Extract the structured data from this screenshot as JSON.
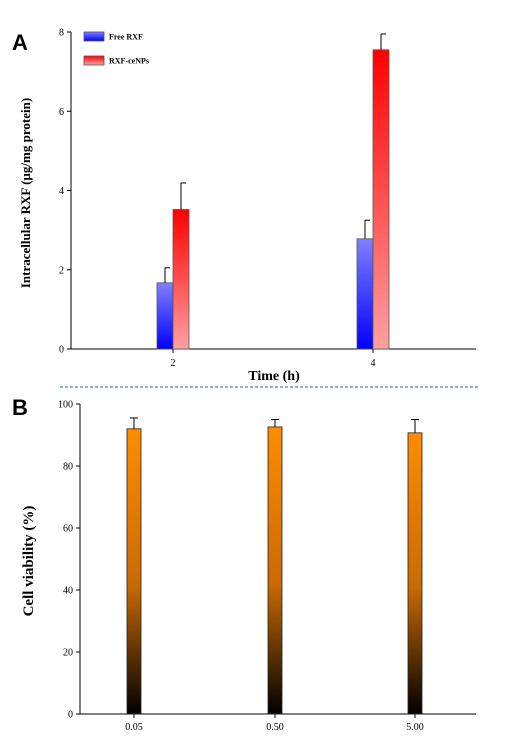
{
  "chart_data": [
    {
      "panel": "A",
      "type": "bar",
      "xlabel": "Time (h)",
      "ylabel": "Intracellular RXF (µg/mg protein)",
      "categories": [
        "2",
        "4"
      ],
      "ylim": [
        0,
        8
      ],
      "yticks": [
        "0",
        "2",
        "4",
        "6",
        "8"
      ],
      "legend_position": "top-left",
      "series": [
        {
          "name": "Free RXF",
          "values": [
            1.67,
            2.78
          ],
          "errors": [
            0.38,
            0.47
          ],
          "color_top": "#8080ff",
          "color_bottom": "#0000ff"
        },
        {
          "name": "RXF-ceNPs",
          "values": [
            3.52,
            7.55
          ],
          "errors": [
            0.67,
            0.4
          ],
          "color_top": "#ff0000",
          "color_bottom": "#ffa0a0"
        }
      ]
    },
    {
      "panel": "B",
      "type": "bar",
      "xlabel": "",
      "ylabel": "Cell viability (%)",
      "categories": [
        "0.05",
        "0.50",
        "5.00"
      ],
      "ylim": [
        0,
        100
      ],
      "yticks": [
        "0",
        "20",
        "40",
        "60",
        "80",
        "100"
      ],
      "series": [
        {
          "values": [
            92.0,
            92.6,
            90.7
          ],
          "errors": [
            3.5,
            2.4,
            4.3
          ],
          "color_top": "#ff8c00",
          "color_bottom": "#000000"
        }
      ]
    }
  ]
}
